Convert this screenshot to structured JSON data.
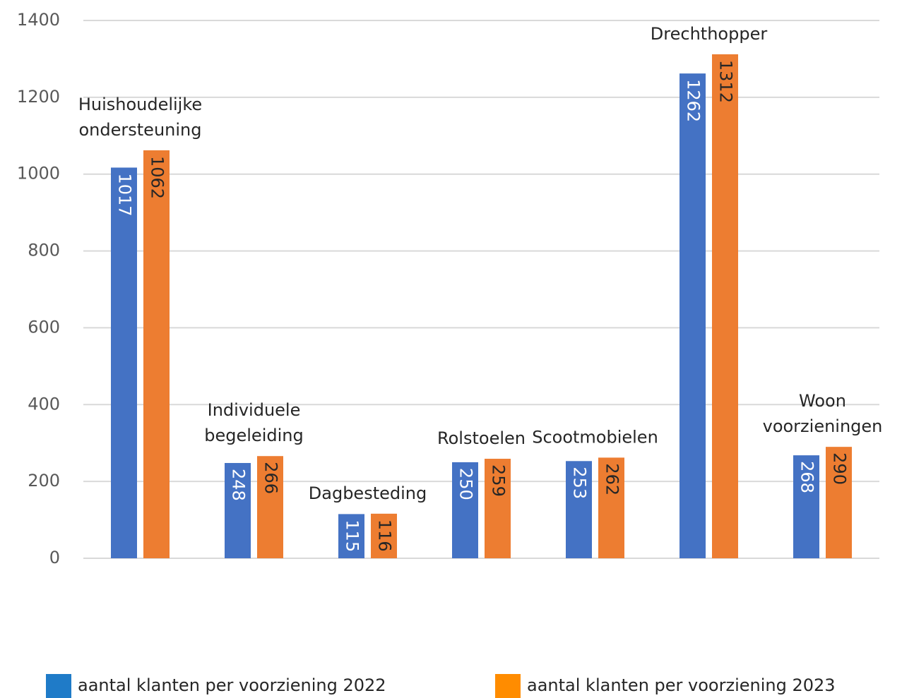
{
  "chart_data": {
    "type": "bar",
    "categories": [
      [
        "Huishoudelijke",
        "ondersteuning"
      ],
      [
        "Individuele",
        "begeleiding"
      ],
      [
        "Dagbesteding"
      ],
      [
        "Rolstoelen"
      ],
      [
        "Scootmobielen"
      ],
      [
        "Drechthopper"
      ],
      [
        "Woon",
        "voorzieningen"
      ]
    ],
    "series": [
      {
        "name": "aantal klanten per voorziening 2022",
        "color": "#4472c4",
        "legend_color": "#1f7bc8",
        "label_color": "#ffffff",
        "values": [
          1017,
          248,
          115,
          250,
          253,
          1262,
          268
        ]
      },
      {
        "name": "aantal klanten per voorziening 2023",
        "color": "#ed7d31",
        "legend_color": "#ff8c00",
        "label_color": "#262626",
        "values": [
          1062,
          266,
          116,
          259,
          262,
          1312,
          290
        ]
      }
    ],
    "ylim": [
      0,
      1400
    ],
    "yticks": [
      0,
      200,
      400,
      600,
      800,
      1000,
      1200,
      1400
    ],
    "grid": true,
    "legend": "bottom"
  }
}
